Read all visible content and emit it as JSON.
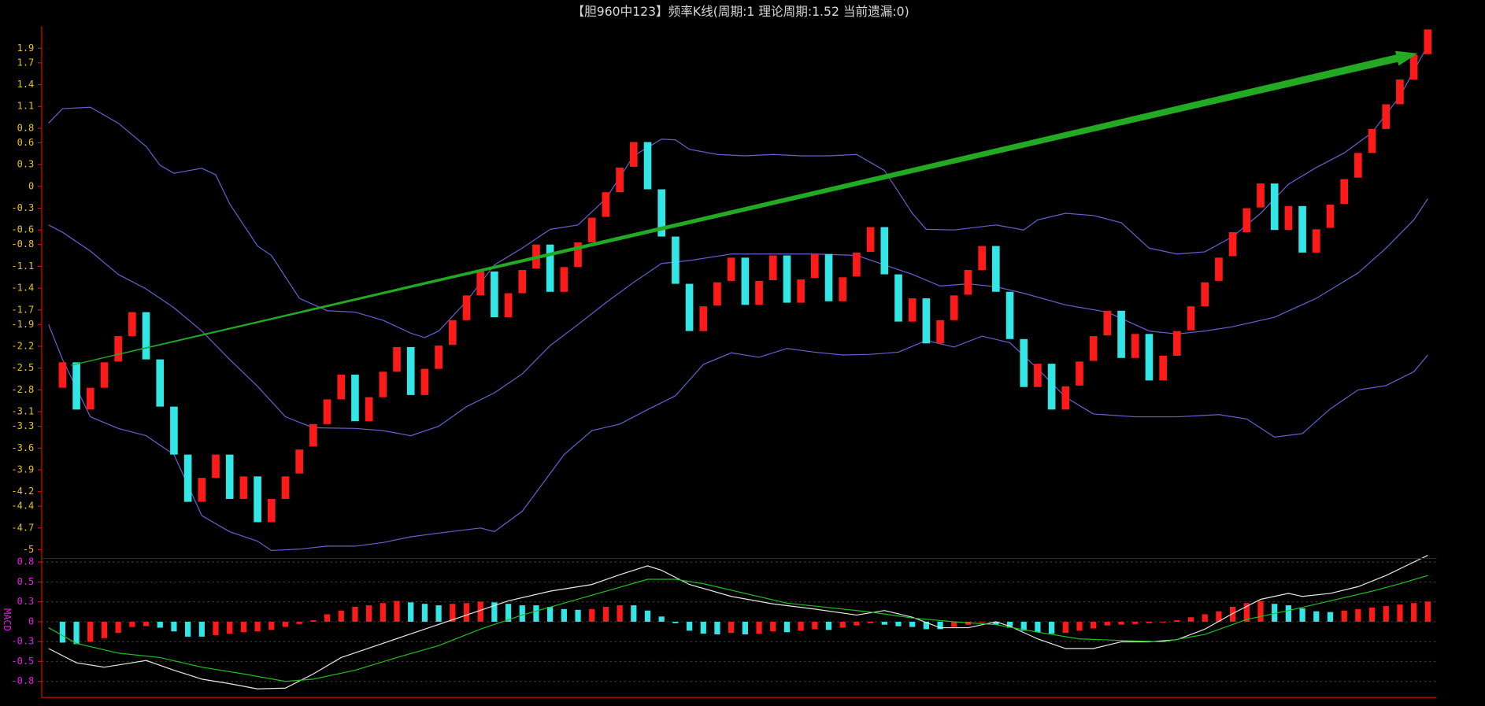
{
  "chart_data": [
    {
      "type": "candlestick",
      "title": "【胆960中123】频率K线(周期:1 理论周期:1.52 当前遗漏:0)",
      "up_color": "#ff1a1a",
      "down_color": "#33e6e6",
      "tick_color": "#e8c020",
      "axis_color": "#d01010",
      "ylim": [
        -5.15,
        2.2
      ],
      "yticks": [
        1.9,
        1.7,
        1.4,
        1.1,
        0.8,
        0.6,
        0.3,
        0,
        -0.3,
        -0.6,
        -0.8,
        -1.1,
        -1.4,
        -1.7,
        -1.9,
        -2.2,
        -2.5,
        -2.8,
        -3.1,
        -3.3,
        -3.6,
        -3.9,
        -4.2,
        -4.4,
        -4.7,
        -5.0
      ],
      "open": [
        -2.77,
        -2.42,
        -3.07,
        -2.77,
        -2.41,
        -2.06,
        -1.73,
        -2.38,
        -3.03,
        -3.69,
        -4.34,
        -4.01,
        -3.69,
        -4.3,
        -3.99,
        -4.62,
        -4.3,
        -3.95,
        -3.58,
        -3.27,
        -2.93,
        -2.59,
        -3.23,
        -2.9,
        -2.55,
        -2.21,
        -2.87,
        -2.51,
        -2.18,
        -1.84,
        -1.5,
        -1.17,
        -1.8,
        -1.47,
        -1.13,
        -0.8,
        -1.45,
        -1.11,
        -0.77,
        -0.42,
        -0.08,
        0.27,
        0.61,
        -0.04,
        -0.69,
        -1.34,
        -1.99,
        -1.64,
        -1.3,
        -0.98,
        -1.63,
        -1.29,
        -0.95,
        -1.6,
        -1.26,
        -0.93,
        -1.58,
        -1.24,
        -0.9,
        -0.56,
        -1.21,
        -1.86,
        -1.54,
        -2.16,
        -1.84,
        -1.49,
        -1.15,
        -0.82,
        -1.45,
        -2.1,
        -2.76,
        -2.44,
        -3.07,
        -2.74,
        -2.4,
        -2.05,
        -1.71,
        -2.36,
        -2.03,
        -2.67,
        -2.33,
        -1.98,
        -1.65,
        -1.3,
        -0.96,
        -0.63,
        -0.29,
        0.04,
        -0.6,
        -0.27,
        -0.91,
        -0.57,
        -0.24,
        0.12,
        0.46,
        0.79,
        1.13,
        1.47,
        1.82
      ],
      "close": [
        -2.42,
        -3.07,
        -2.77,
        -2.42,
        -2.06,
        -1.73,
        -2.38,
        -3.03,
        -3.69,
        -4.34,
        -4.01,
        -3.69,
        -4.3,
        -3.99,
        -4.62,
        -4.3,
        -3.99,
        -3.62,
        -3.27,
        -2.93,
        -2.59,
        -3.23,
        -2.9,
        -2.55,
        -2.21,
        -2.87,
        -2.51,
        -2.19,
        -1.84,
        -1.5,
        -1.17,
        -1.8,
        -1.47,
        -1.15,
        -0.8,
        -1.45,
        -1.11,
        -0.77,
        -0.43,
        -0.08,
        0.26,
        0.61,
        -0.04,
        -0.69,
        -1.34,
        -1.99,
        -1.65,
        -1.32,
        -0.98,
        -1.63,
        -1.3,
        -0.95,
        -1.6,
        -1.28,
        -0.93,
        -1.58,
        -1.25,
        -0.91,
        -0.56,
        -1.21,
        -1.86,
        -1.54,
        -2.16,
        -1.84,
        -1.5,
        -1.15,
        -0.82,
        -1.45,
        -2.1,
        -2.76,
        -2.44,
        -3.07,
        -2.75,
        -2.41,
        -2.06,
        -1.71,
        -2.36,
        -2.03,
        -2.67,
        -2.33,
        -1.99,
        -1.65,
        -1.32,
        -0.98,
        -0.63,
        -0.3,
        0.04,
        -0.6,
        -0.27,
        -0.91,
        -0.59,
        -0.25,
        0.1,
        0.46,
        0.79,
        1.13,
        1.47,
        1.81,
        2.16
      ],
      "series": [
        {
          "color": "#6a5fd0",
          "x": [
            0,
            1,
            3,
            5,
            7,
            8,
            9,
            11,
            12,
            13,
            15,
            16,
            18,
            20,
            22,
            24,
            26,
            27,
            28,
            30,
            32,
            34,
            36,
            38,
            40,
            42,
            44,
            45,
            46,
            48,
            50,
            52,
            54,
            56,
            58,
            60,
            62,
            63,
            65,
            68,
            70,
            71,
            73,
            75,
            77,
            79,
            81,
            83,
            85,
            87,
            89,
            91,
            93,
            95,
            97,
            99
          ],
          "values": [
            0.87,
            1.07,
            1.09,
            0.87,
            0.55,
            0.29,
            0.18,
            0.25,
            0.16,
            -0.24,
            -0.82,
            -0.95,
            -1.54,
            -1.71,
            -1.73,
            -1.84,
            -2.02,
            -2.08,
            -1.99,
            -1.58,
            -1.08,
            -0.85,
            -0.59,
            -0.53,
            -0.17,
            0.42,
            0.65,
            0.64,
            0.51,
            0.44,
            0.42,
            0.44,
            0.42,
            0.42,
            0.44,
            0.22,
            -0.37,
            -0.59,
            -0.6,
            -0.53,
            -0.6,
            -0.46,
            -0.37,
            -0.4,
            -0.5,
            -0.85,
            -0.93,
            -0.9,
            -0.69,
            -0.37,
            0.03,
            0.26,
            0.46,
            0.74,
            1.24,
            1.94
          ]
        },
        {
          "color": "#6a5fd0",
          "x": [
            0,
            1,
            3,
            5,
            7,
            9,
            11,
            13,
            15,
            17,
            19,
            22,
            24,
            26,
            28,
            30,
            32,
            34,
            36,
            38,
            40,
            42,
            44,
            46,
            49,
            52,
            55,
            58,
            60,
            62,
            64,
            66,
            68,
            70,
            73,
            76,
            79,
            81,
            83,
            85,
            88,
            91,
            94,
            96,
            98,
            99
          ],
          "values": [
            -0.53,
            -0.63,
            -0.89,
            -1.21,
            -1.41,
            -1.67,
            -1.99,
            -2.38,
            -2.75,
            -3.17,
            -3.32,
            -3.33,
            -3.36,
            -3.43,
            -3.3,
            -3.03,
            -2.84,
            -2.58,
            -2.19,
            -1.9,
            -1.6,
            -1.32,
            -1.06,
            -1.02,
            -0.93,
            -0.93,
            -0.93,
            -0.95,
            -1.08,
            -1.21,
            -1.37,
            -1.34,
            -1.38,
            -1.47,
            -1.63,
            -1.73,
            -1.99,
            -2.03,
            -1.99,
            -1.93,
            -1.8,
            -1.54,
            -1.19,
            -0.85,
            -0.46,
            -0.17
          ]
        },
        {
          "color": "#6a5fd0",
          "x": [
            0,
            1,
            3,
            5,
            7,
            9,
            11,
            13,
            15,
            16,
            18,
            20,
            22,
            24,
            26,
            28,
            31,
            32,
            34,
            35,
            37,
            39,
            41,
            43,
            45,
            47,
            49,
            51,
            53,
            55,
            57,
            59,
            61,
            63,
            65,
            67,
            69,
            71,
            73,
            75,
            78,
            81,
            84,
            86,
            88,
            90,
            92,
            94,
            96,
            98,
            99
          ],
          "values": [
            -1.9,
            -2.38,
            -3.17,
            -3.33,
            -3.43,
            -3.69,
            -4.53,
            -4.75,
            -4.88,
            -5.01,
            -4.99,
            -4.95,
            -4.95,
            -4.9,
            -4.82,
            -4.77,
            -4.7,
            -4.75,
            -4.47,
            -4.21,
            -3.69,
            -3.36,
            -3.27,
            -3.07,
            -2.88,
            -2.45,
            -2.29,
            -2.35,
            -2.23,
            -2.28,
            -2.32,
            -2.31,
            -2.28,
            -2.12,
            -2.21,
            -2.06,
            -2.15,
            -2.51,
            -2.9,
            -3.13,
            -3.17,
            -3.17,
            -3.14,
            -3.2,
            -3.45,
            -3.4,
            -3.06,
            -2.8,
            -2.74,
            -2.55,
            -2.32
          ]
        }
      ]
    },
    {
      "type": "macd",
      "label": "MACD",
      "up_color": "#ff1a1a",
      "down_color": "#33e6e6",
      "tick_color": "#e020e0",
      "axis_color": "#d01010",
      "grid": true,
      "ylim": [
        -1.0,
        0.85
      ],
      "yticks": [
        0.8,
        {
          "value": 0.533,
          "label": "0.5"
        },
        {
          "value": 0.267,
          "label": "0.3"
        },
        0,
        {
          "value": -0.267,
          "label": "-0.3"
        },
        {
          "value": -0.533,
          "label": "-0.5"
        },
        -0.8
      ],
      "values": [
        -0.28,
        -0.3,
        -0.27,
        -0.22,
        -0.15,
        -0.07,
        -0.06,
        -0.08,
        -0.13,
        -0.2,
        -0.2,
        -0.18,
        -0.16,
        -0.14,
        -0.13,
        -0.11,
        -0.07,
        -0.03,
        0.02,
        0.1,
        0.15,
        0.2,
        0.22,
        0.25,
        0.28,
        0.26,
        0.24,
        0.22,
        0.24,
        0.25,
        0.27,
        0.26,
        0.24,
        0.22,
        0.22,
        0.2,
        0.17,
        0.16,
        0.17,
        0.2,
        0.22,
        0.22,
        0.15,
        0.07,
        -0.02,
        -0.12,
        -0.16,
        -0.17,
        -0.15,
        -0.17,
        -0.16,
        -0.13,
        -0.14,
        -0.12,
        -0.1,
        -0.11,
        -0.08,
        -0.05,
        -0.02,
        -0.04,
        -0.06,
        -0.07,
        -0.1,
        -0.1,
        -0.07,
        -0.04,
        -0.01,
        -0.04,
        -0.08,
        -0.12,
        -0.14,
        -0.16,
        -0.15,
        -0.12,
        -0.09,
        -0.05,
        -0.04,
        -0.03,
        -0.02,
        -0.01,
        0.02,
        0.06,
        0.1,
        0.14,
        0.2,
        0.25,
        0.28,
        0.24,
        0.22,
        0.18,
        0.14,
        0.13,
        0.15,
        0.17,
        0.19,
        0.21,
        0.23,
        0.25,
        0.27
      ],
      "series": [
        {
          "color": "#e8e8e8",
          "x": [
            0,
            2,
            4,
            6,
            7,
            9,
            11,
            13,
            15,
            17,
            19,
            21,
            24,
            27,
            30,
            33,
            36,
            39,
            41,
            43,
            44,
            46,
            49,
            52,
            55,
            58,
            60,
            62,
            64,
            66,
            68,
            69,
            71,
            73,
            75,
            77,
            79,
            81,
            83,
            85,
            87,
            89,
            90,
            92,
            94,
            96,
            99
          ],
          "values": [
            -0.36,
            -0.55,
            -0.61,
            -0.55,
            -0.52,
            -0.65,
            -0.77,
            -0.83,
            -0.9,
            -0.89,
            -0.7,
            -0.48,
            -0.29,
            -0.1,
            0.09,
            0.28,
            0.41,
            0.5,
            0.63,
            0.75,
            0.69,
            0.5,
            0.34,
            0.24,
            0.17,
            0.09,
            0.15,
            0.06,
            -0.08,
            -0.08,
            0,
            -0.06,
            -0.23,
            -0.36,
            -0.36,
            -0.27,
            -0.27,
            -0.24,
            -0.1,
            0.11,
            0.3,
            0.38,
            0.34,
            0.38,
            0.47,
            0.62,
            0.89
          ]
        },
        {
          "color": "#20c020",
          "x": [
            0,
            2,
            5,
            8,
            11,
            14,
            17,
            19,
            22,
            25,
            28,
            31,
            34,
            37,
            40,
            43,
            45,
            47,
            50,
            53,
            56,
            59,
            62,
            65,
            68,
            71,
            74,
            77,
            80,
            83,
            86,
            89,
            92,
            95,
            97,
            99
          ],
          "values": [
            -0.08,
            -0.29,
            -0.42,
            -0.48,
            -0.61,
            -0.7,
            -0.8,
            -0.77,
            -0.65,
            -0.48,
            -0.32,
            -0.1,
            0.09,
            0.25,
            0.41,
            0.57,
            0.57,
            0.51,
            0.38,
            0.25,
            0.19,
            0.13,
            0.05,
            0,
            -0.04,
            -0.14,
            -0.23,
            -0.25,
            -0.27,
            -0.17,
            0.03,
            0.15,
            0.28,
            0.41,
            0.51,
            0.62
          ]
        }
      ]
    }
  ]
}
